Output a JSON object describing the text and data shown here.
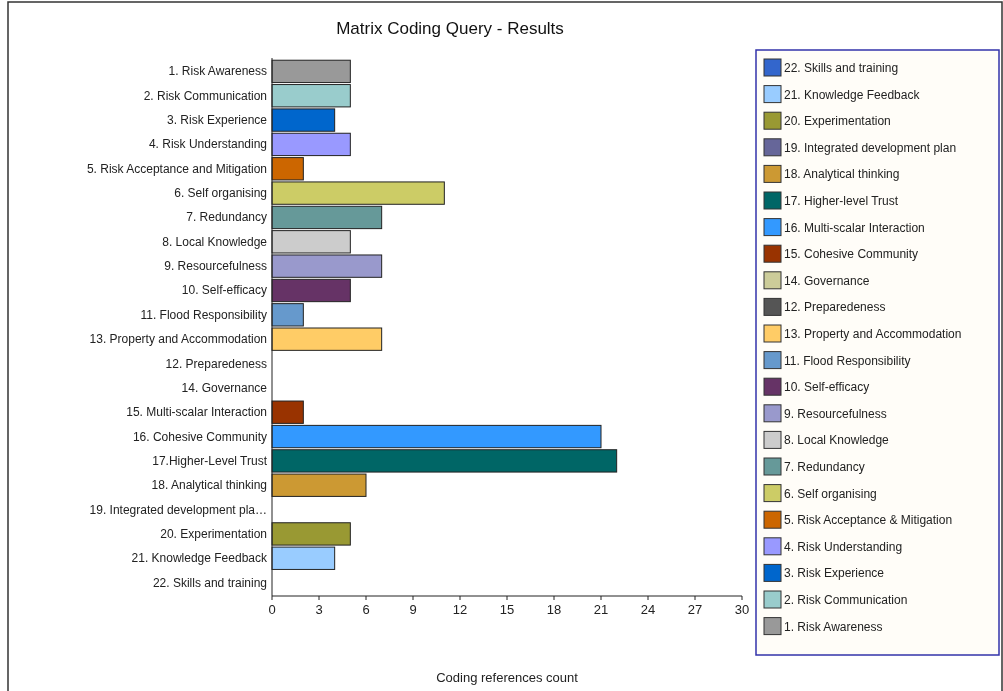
{
  "chart_data": {
    "type": "bar",
    "orientation": "horizontal",
    "title": "Matrix Coding Query - Results",
    "xlabel": "Coding references count",
    "categories": [
      "1. Risk Awareness",
      "2. Risk Communication",
      "3. Risk Experience",
      "4. Risk Understanding",
      "5. Risk Acceptance and Mitigation",
      "6. Self organising",
      "7. Redundancy",
      "8. Local Knowledge",
      "9. Resourcefulness",
      "10. Self-efficacy",
      "11. Flood Responsibility",
      "13. Property and Accommodation",
      "12. Preparedeness",
      "14. Governance",
      "15. Multi-scalar Interaction",
      "16. Cohesive Community",
      "17.Higher-Level Trust",
      "18. Analytical thinking",
      "19. Integrated development pla…",
      "20. Experimentation",
      "21. Knowledge Feedback",
      "22. Skills and training"
    ],
    "xlim": [
      0,
      30
    ],
    "xticks": [
      0,
      3,
      6,
      9,
      12,
      15,
      18,
      21,
      24,
      27,
      30
    ],
    "legend": "right",
    "grid": false,
    "series": [
      {
        "name": "1. Risk Awareness",
        "color": "#999999",
        "values": [
          5,
          null,
          null,
          null,
          null,
          null,
          null,
          null,
          null,
          null,
          null,
          null,
          null,
          null,
          null,
          null,
          null,
          null,
          null,
          null,
          null,
          null
        ]
      },
      {
        "name": "2. Risk Communication",
        "color": "#99cccc",
        "values": [
          null,
          5,
          null,
          null,
          null,
          null,
          null,
          null,
          null,
          null,
          null,
          null,
          null,
          null,
          null,
          null,
          null,
          null,
          null,
          null,
          null,
          null
        ]
      },
      {
        "name": "3. Risk Experience",
        "color": "#0066cc",
        "values": [
          null,
          null,
          4,
          null,
          null,
          null,
          null,
          null,
          null,
          null,
          null,
          null,
          null,
          null,
          null,
          null,
          null,
          null,
          null,
          null,
          null,
          null
        ]
      },
      {
        "name": "4. Risk Understanding",
        "color": "#9999ff",
        "values": [
          null,
          null,
          null,
          5,
          null,
          null,
          null,
          null,
          null,
          null,
          null,
          null,
          null,
          null,
          null,
          null,
          null,
          null,
          null,
          null,
          null,
          null
        ]
      },
      {
        "name": "5. Risk Acceptance & Mitigation",
        "color": "#cc6600",
        "values": [
          null,
          null,
          null,
          null,
          2,
          null,
          null,
          null,
          null,
          null,
          null,
          null,
          null,
          null,
          null,
          null,
          null,
          null,
          null,
          null,
          null,
          null
        ]
      },
      {
        "name": "6. Self organising",
        "color": "#cccc66",
        "values": [
          null,
          null,
          null,
          null,
          null,
          11,
          null,
          null,
          null,
          null,
          null,
          null,
          null,
          null,
          null,
          null,
          null,
          null,
          null,
          null,
          null,
          null
        ]
      },
      {
        "name": "7. Redundancy",
        "color": "#669999",
        "values": [
          null,
          null,
          null,
          null,
          null,
          null,
          7,
          null,
          null,
          null,
          null,
          null,
          null,
          null,
          null,
          null,
          null,
          null,
          null,
          null,
          null,
          null
        ]
      },
      {
        "name": "8. Local Knowledge",
        "color": "#cccccc",
        "values": [
          null,
          null,
          null,
          null,
          null,
          null,
          null,
          5,
          null,
          null,
          null,
          null,
          null,
          null,
          null,
          null,
          null,
          null,
          null,
          null,
          null,
          null
        ]
      },
      {
        "name": "9. Resourcefulness",
        "color": "#9999cc",
        "values": [
          null,
          null,
          null,
          null,
          null,
          null,
          null,
          null,
          7,
          null,
          null,
          null,
          null,
          null,
          null,
          null,
          null,
          null,
          null,
          null,
          null,
          null
        ]
      },
      {
        "name": "10. Self-efficacy",
        "color": "#663366",
        "values": [
          null,
          null,
          null,
          null,
          null,
          null,
          null,
          null,
          null,
          5,
          null,
          null,
          null,
          null,
          null,
          null,
          null,
          null,
          null,
          null,
          null,
          null
        ]
      },
      {
        "name": "11. Flood Responsibility",
        "color": "#6699cc",
        "values": [
          null,
          null,
          null,
          null,
          null,
          null,
          null,
          null,
          null,
          null,
          2,
          null,
          null,
          null,
          null,
          null,
          null,
          null,
          null,
          null,
          null,
          null
        ]
      },
      {
        "name": "13. Property and Accommodation",
        "color": "#ffcc66",
        "values": [
          null,
          null,
          null,
          null,
          null,
          null,
          null,
          null,
          null,
          null,
          null,
          7,
          null,
          null,
          null,
          null,
          null,
          null,
          null,
          null,
          null,
          null
        ]
      },
      {
        "name": "12. Preparedeness",
        "color": "#555555",
        "values": [
          null,
          null,
          null,
          null,
          null,
          null,
          null,
          null,
          null,
          null,
          null,
          null,
          0,
          null,
          null,
          null,
          null,
          null,
          null,
          null,
          null,
          null
        ]
      },
      {
        "name": "14. Governance",
        "color": "#cccc99",
        "values": [
          null,
          null,
          null,
          null,
          null,
          null,
          null,
          null,
          null,
          null,
          null,
          null,
          null,
          0,
          null,
          null,
          null,
          null,
          null,
          null,
          null,
          null
        ]
      },
      {
        "name": "15. Cohesive Community",
        "color": "#993300",
        "values": [
          null,
          null,
          null,
          null,
          null,
          null,
          null,
          null,
          null,
          null,
          null,
          null,
          null,
          null,
          2,
          null,
          null,
          null,
          null,
          null,
          null,
          null
        ]
      },
      {
        "name": "16. Multi-scalar Interaction",
        "color": "#3399ff",
        "values": [
          null,
          null,
          null,
          null,
          null,
          null,
          null,
          null,
          null,
          null,
          null,
          null,
          null,
          null,
          null,
          21,
          null,
          null,
          null,
          null,
          null,
          null
        ]
      },
      {
        "name": "17. Higher-level Trust",
        "color": "#006666",
        "values": [
          null,
          null,
          null,
          null,
          null,
          null,
          null,
          null,
          null,
          null,
          null,
          null,
          null,
          null,
          null,
          null,
          22,
          null,
          null,
          null,
          null,
          null
        ]
      },
      {
        "name": "18. Analytical thinking",
        "color": "#cc9933",
        "values": [
          null,
          null,
          null,
          null,
          null,
          null,
          null,
          null,
          null,
          null,
          null,
          null,
          null,
          null,
          null,
          null,
          null,
          6,
          null,
          null,
          null,
          null
        ]
      },
      {
        "name": "19. Integrated development plan",
        "color": "#666699",
        "values": [
          null,
          null,
          null,
          null,
          null,
          null,
          null,
          null,
          null,
          null,
          null,
          null,
          null,
          null,
          null,
          null,
          null,
          null,
          0,
          null,
          null,
          null
        ]
      },
      {
        "name": "20. Experimentation",
        "color": "#999933",
        "values": [
          null,
          null,
          null,
          null,
          null,
          null,
          null,
          null,
          null,
          null,
          null,
          null,
          null,
          null,
          null,
          null,
          null,
          null,
          null,
          5,
          null,
          null
        ]
      },
      {
        "name": "21. Knowledge Feedback",
        "color": "#99ccff",
        "values": [
          null,
          null,
          null,
          null,
          null,
          null,
          null,
          null,
          null,
          null,
          null,
          null,
          null,
          null,
          null,
          null,
          null,
          null,
          null,
          null,
          4,
          null
        ]
      },
      {
        "name": "22. Skills and training",
        "color": "#3366cc",
        "values": [
          null,
          null,
          null,
          null,
          null,
          null,
          null,
          null,
          null,
          null,
          null,
          null,
          null,
          null,
          null,
          null,
          null,
          null,
          null,
          null,
          null,
          0
        ]
      }
    ]
  }
}
